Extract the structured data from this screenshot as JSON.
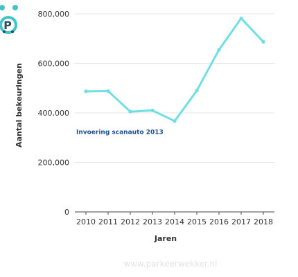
{
  "brand": {
    "icon": "parking-alarm-clock-icon",
    "letter": "P",
    "watermark": "www.parkeerwekker.nl"
  },
  "colors": {
    "line": "#6fdfe3",
    "annotation": "#1d4f91",
    "brand_teal": "#42c3c7",
    "brand_dark": "#2d4e5d",
    "grid": "#e6e6e6",
    "axis": "#444444",
    "watermark": "#e3e3e3"
  },
  "chart_data": {
    "type": "line",
    "x": [
      "2010",
      "2011",
      "2012",
      "2013",
      "2014",
      "2015",
      "2016",
      "2017",
      "2018"
    ],
    "series": [
      {
        "values": [
          487000,
          488000,
          405000,
          410000,
          367000,
          490000,
          655000,
          782000,
          687000
        ]
      }
    ],
    "xlabel": "Jaren",
    "ylabel": "Aantal bekeuringen",
    "ylim": [
      0,
      800000
    ],
    "y_ticks": [
      0,
      200000,
      400000,
      600000,
      800000
    ],
    "y_tick_labels": [
      "0",
      "200,000",
      "400,000",
      "600,000",
      "800,000"
    ],
    "grid": "horizontal",
    "annotations": [
      {
        "text": "Invoering scanauto 2013",
        "y_value": 315000
      }
    ]
  }
}
